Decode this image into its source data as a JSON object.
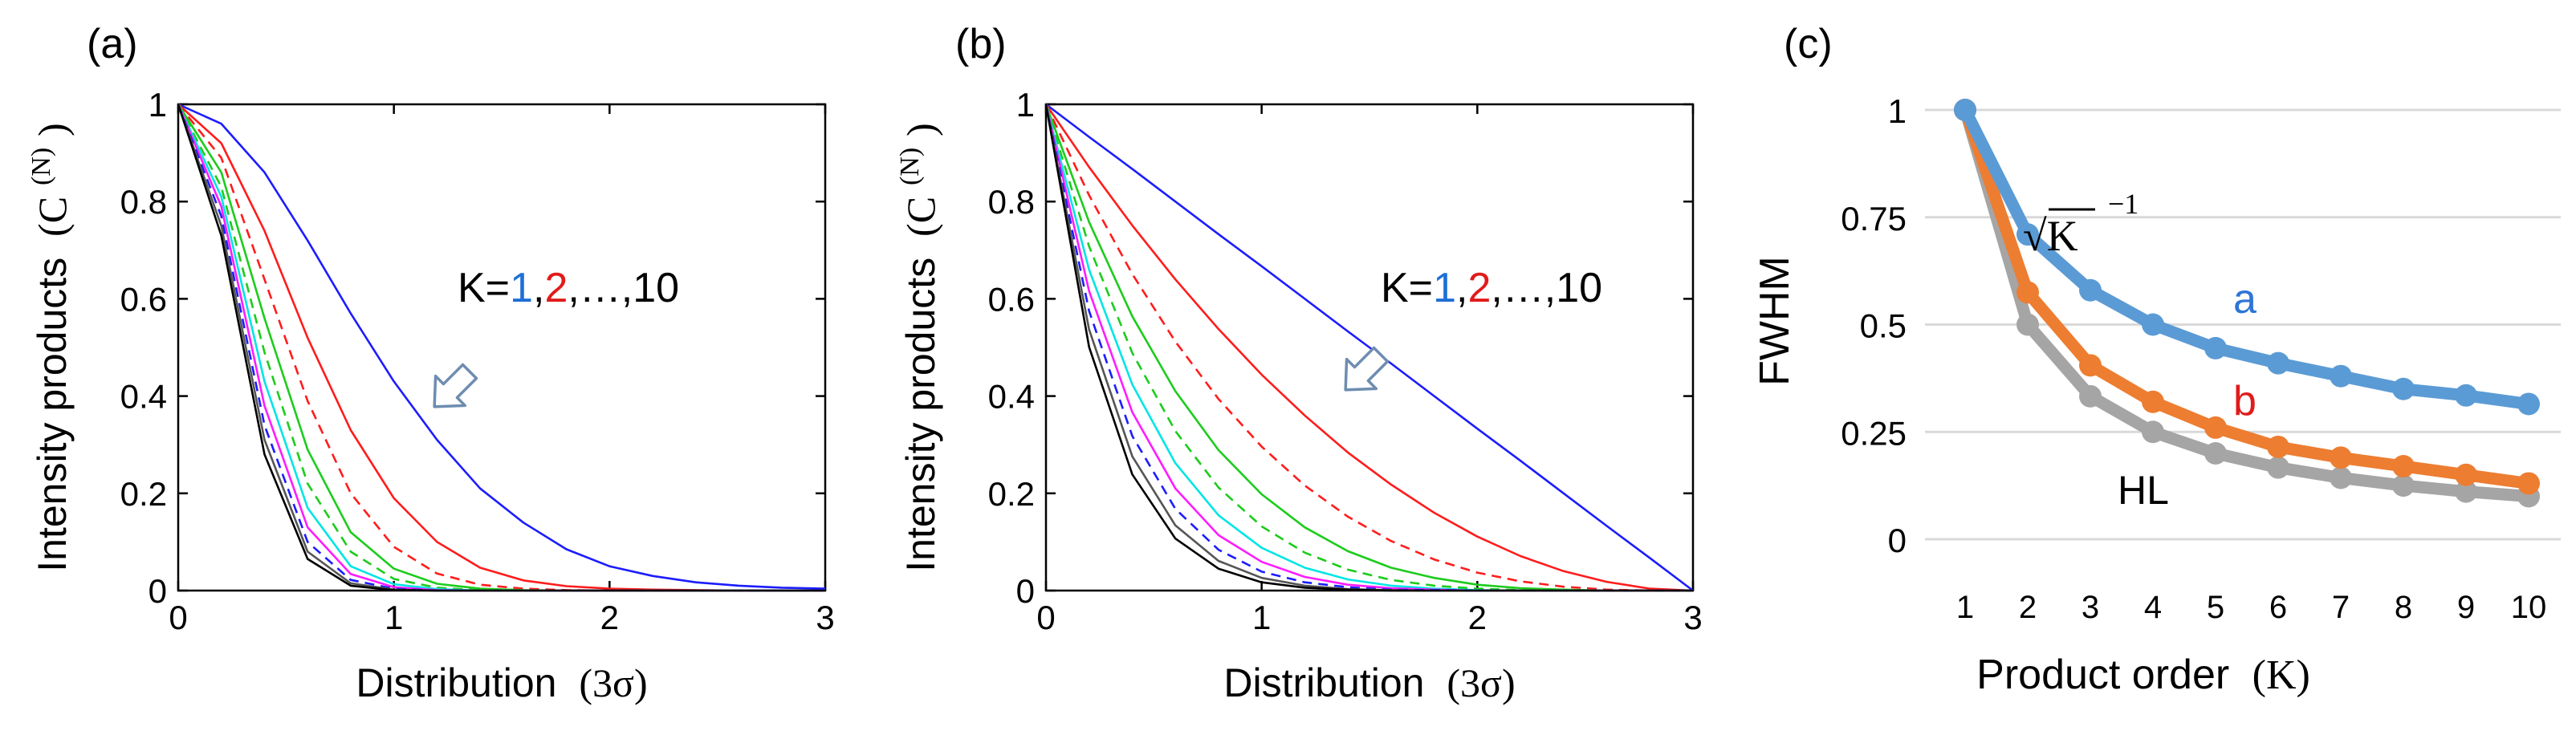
{
  "chart_data": [
    {
      "panel": "(a)",
      "type": "line",
      "title": "",
      "ylabel": "Intensity products",
      "ylabel_symbol": "(C",
      "ylabel_sup": "(N)",
      "ylabel_close": ")",
      "xlabel": "Distribution",
      "xlabel_unit": "(3σ)",
      "xlim": [
        0,
        3
      ],
      "ylim": [
        0,
        1
      ],
      "xticks": [
        "0",
        "1",
        "2",
        "3"
      ],
      "yticks": [
        "0",
        "0.2",
        "0.4",
        "0.6",
        "0.8",
        "1"
      ],
      "grid": false,
      "x": [
        0,
        0.2,
        0.4,
        0.6,
        0.8,
        1.0,
        1.2,
        1.4,
        1.6,
        1.8,
        2.0,
        2.2,
        2.4,
        2.6,
        2.8,
        3.0
      ],
      "series": [
        {
          "name": "K=1",
          "color": "#1c1cff",
          "dash": "solid",
          "values": [
            1.0,
            0.96,
            0.86,
            0.72,
            0.57,
            0.43,
            0.31,
            0.21,
            0.14,
            0.085,
            0.05,
            0.03,
            0.017,
            0.01,
            0.006,
            0.004
          ]
        },
        {
          "name": "K=2",
          "color": "#ff1c1c",
          "dash": "solid",
          "values": [
            1.0,
            0.92,
            0.74,
            0.52,
            0.33,
            0.19,
            0.1,
            0.047,
            0.021,
            0.009,
            0.004,
            0.002,
            0.001,
            0,
            0,
            0
          ]
        },
        {
          "name": "K=3",
          "color": "#ff1c1c",
          "dash": "dashed",
          "values": [
            1.0,
            0.89,
            0.64,
            0.39,
            0.2,
            0.09,
            0.035,
            0.012,
            0.004,
            0.001,
            0,
            0,
            0,
            0,
            0,
            0
          ]
        },
        {
          "name": "K=4",
          "color": "#1ccc1c",
          "dash": "solid",
          "values": [
            1.0,
            0.86,
            0.56,
            0.29,
            0.12,
            0.045,
            0.014,
            0.004,
            0.001,
            0,
            0,
            0,
            0,
            0,
            0,
            0
          ]
        },
        {
          "name": "K=5",
          "color": "#1ccc1c",
          "dash": "dashed",
          "values": [
            1.0,
            0.83,
            0.49,
            0.22,
            0.08,
            0.024,
            0.006,
            0.001,
            0,
            0,
            0,
            0,
            0,
            0,
            0,
            0
          ]
        },
        {
          "name": "K=6",
          "color": "#00e5e5",
          "dash": "solid",
          "values": [
            1.0,
            0.81,
            0.43,
            0.17,
            0.05,
            0.013,
            0.003,
            0,
            0,
            0,
            0,
            0,
            0,
            0,
            0,
            0
          ]
        },
        {
          "name": "K=7",
          "color": "#ff1cff",
          "dash": "solid",
          "values": [
            1.0,
            0.79,
            0.38,
            0.13,
            0.034,
            0.007,
            0.001,
            0,
            0,
            0,
            0,
            0,
            0,
            0,
            0,
            0
          ]
        },
        {
          "name": "K=8",
          "color": "#1c1cff",
          "dash": "dashed",
          "values": [
            1.0,
            0.77,
            0.34,
            0.1,
            0.022,
            0.004,
            0,
            0,
            0,
            0,
            0,
            0,
            0,
            0,
            0,
            0
          ]
        },
        {
          "name": "K=9",
          "color": "#555555",
          "dash": "solid",
          "values": [
            1.0,
            0.75,
            0.31,
            0.08,
            0.015,
            0.002,
            0,
            0,
            0,
            0,
            0,
            0,
            0,
            0,
            0,
            0
          ]
        },
        {
          "name": "K=10",
          "color": "#000000",
          "dash": "solid",
          "values": [
            1.0,
            0.73,
            0.28,
            0.065,
            0.01,
            0.001,
            0,
            0,
            0,
            0,
            0,
            0,
            0,
            0,
            0,
            0
          ]
        }
      ],
      "annotation": {
        "prefix": "K=",
        "k1": "1",
        "sep1": ",",
        "k2": "2",
        "rest": ",…,10",
        "k1_color": "#1f6fd6",
        "k2_color": "#e01b1b"
      }
    },
    {
      "panel": "(b)",
      "type": "line",
      "title": "",
      "ylabel": "Intensity products",
      "ylabel_symbol": "(C",
      "ylabel_sup": "(N)",
      "ylabel_close": ")",
      "xlabel": "Distribution",
      "xlabel_unit": "(3σ)",
      "xlim": [
        0,
        3
      ],
      "ylim": [
        0,
        1
      ],
      "xticks": [
        "0",
        "1",
        "2",
        "3"
      ],
      "yticks": [
        "0",
        "0.2",
        "0.4",
        "0.6",
        "0.8",
        "1"
      ],
      "grid": false,
      "x": [
        0,
        0.2,
        0.4,
        0.6,
        0.8,
        1.0,
        1.2,
        1.4,
        1.6,
        1.8,
        2.0,
        2.2,
        2.4,
        2.6,
        2.8,
        3.0
      ],
      "series": [
        {
          "name": "K=1",
          "color": "#1c1cff",
          "dash": "solid",
          "values": [
            1.0,
            0.933,
            0.867,
            0.8,
            0.733,
            0.667,
            0.6,
            0.533,
            0.467,
            0.4,
            0.333,
            0.267,
            0.2,
            0.133,
            0.067,
            0
          ]
        },
        {
          "name": "K=2",
          "color": "#ff1c1c",
          "dash": "solid",
          "values": [
            1.0,
            0.871,
            0.751,
            0.64,
            0.538,
            0.444,
            0.36,
            0.284,
            0.218,
            0.16,
            0.111,
            0.071,
            0.04,
            0.018,
            0.004,
            0
          ]
        },
        {
          "name": "K=3",
          "color": "#ff1c1c",
          "dash": "dashed",
          "values": [
            1.0,
            0.813,
            0.651,
            0.512,
            0.394,
            0.296,
            0.216,
            0.152,
            0.102,
            0.064,
            0.037,
            0.019,
            0.008,
            0.002,
            0,
            0
          ]
        },
        {
          "name": "K=4",
          "color": "#1ccc1c",
          "dash": "solid",
          "values": [
            1.0,
            0.758,
            0.564,
            0.41,
            0.289,
            0.198,
            0.13,
            0.081,
            0.047,
            0.026,
            0.012,
            0.005,
            0.002,
            0,
            0,
            0
          ]
        },
        {
          "name": "K=5",
          "color": "#1ccc1c",
          "dash": "dashed",
          "values": [
            1.0,
            0.708,
            0.489,
            0.328,
            0.212,
            0.132,
            0.078,
            0.043,
            0.022,
            0.01,
            0.004,
            0.001,
            0,
            0,
            0,
            0
          ]
        },
        {
          "name": "K=6",
          "color": "#00e5e5",
          "dash": "solid",
          "values": [
            1.0,
            0.66,
            0.424,
            0.262,
            0.155,
            0.088,
            0.047,
            0.023,
            0.01,
            0.004,
            0.001,
            0,
            0,
            0,
            0,
            0
          ]
        },
        {
          "name": "K=7",
          "color": "#ff1cff",
          "dash": "solid",
          "values": [
            1.0,
            0.616,
            0.367,
            0.21,
            0.114,
            0.059,
            0.028,
            0.012,
            0.005,
            0.002,
            0,
            0,
            0,
            0,
            0,
            0
          ]
        },
        {
          "name": "K=8",
          "color": "#1c1cff",
          "dash": "dashed",
          "values": [
            1.0,
            0.575,
            0.318,
            0.168,
            0.084,
            0.039,
            0.017,
            0.007,
            0.002,
            0.001,
            0,
            0,
            0,
            0,
            0,
            0
          ]
        },
        {
          "name": "K=9",
          "color": "#555555",
          "dash": "solid",
          "values": [
            1.0,
            0.537,
            0.276,
            0.134,
            0.061,
            0.026,
            0.01,
            0.003,
            0.001,
            0,
            0,
            0,
            0,
            0,
            0,
            0
          ]
        },
        {
          "name": "K=10",
          "color": "#000000",
          "dash": "solid",
          "values": [
            1.0,
            0.501,
            0.239,
            0.107,
            0.045,
            0.017,
            0.006,
            0.002,
            0,
            0,
            0,
            0,
            0,
            0,
            0,
            0
          ]
        }
      ],
      "annotation": {
        "prefix": "K=",
        "k1": "1",
        "sep1": ",",
        "k2": "2",
        "rest": ",…,10",
        "k1_color": "#1f6fd6",
        "k2_color": "#e01b1b"
      }
    },
    {
      "panel": "(c)",
      "type": "line",
      "title": "",
      "ylabel": "FWHM",
      "xlabel": "Product order",
      "xlabel_unit": "(K)",
      "xlim": [
        1,
        10
      ],
      "ylim": [
        0,
        1
      ],
      "grid": true,
      "categories": [
        "1",
        "2",
        "3",
        "4",
        "5",
        "6",
        "7",
        "8",
        "9",
        "10"
      ],
      "yticks": [
        "0",
        "0.25",
        "0.5",
        "0.75",
        "1"
      ],
      "series": [
        {
          "name": "a",
          "color": "#5b9bd5",
          "values": [
            1.0,
            0.71,
            0.58,
            0.5,
            0.445,
            0.41,
            0.38,
            0.35,
            0.335,
            0.315
          ]
        },
        {
          "name": "b",
          "color": "#ed7d31",
          "values": [
            1.0,
            0.575,
            0.405,
            0.32,
            0.26,
            0.215,
            0.19,
            0.17,
            0.15,
            0.13
          ]
        },
        {
          "name": "HL",
          "color": "#a5a5a5",
          "values": [
            1.0,
            0.5,
            0.333,
            0.25,
            0.2,
            0.167,
            0.143,
            0.125,
            0.111,
            0.1
          ]
        }
      ],
      "label_a": "a",
      "label_a_color": "#2e75d6",
      "label_b": "b",
      "label_b_color": "#e01b1b",
      "label_hl": "HL",
      "annotation_sqrt": "√K",
      "annotation_exp": "−1"
    }
  ]
}
